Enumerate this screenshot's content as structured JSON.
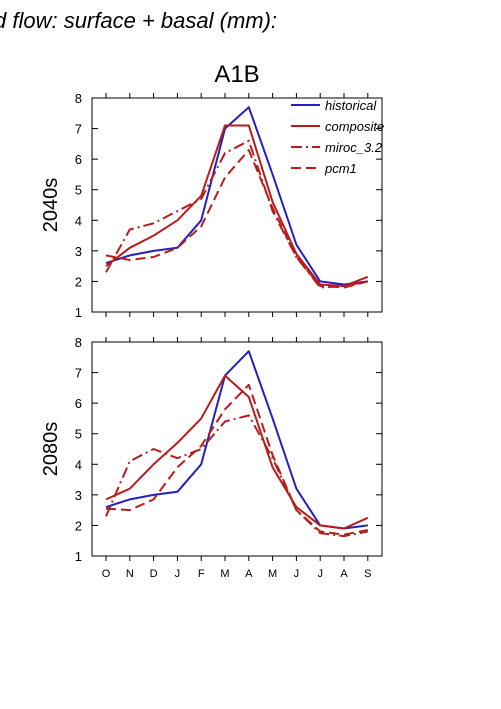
{
  "figure_title": "d flow: surface + basal (mm):",
  "scenario_label": "A1B",
  "colors": {
    "historical": "#2222bb",
    "composite": "#b81c1c",
    "miroc_3.2": "#b81c1c",
    "pcm1": "#b81c1c"
  },
  "chart_data": [
    {
      "type": "line",
      "row_label": "2040s",
      "x": [
        "O",
        "N",
        "D",
        "J",
        "F",
        "M",
        "A",
        "M",
        "J",
        "J",
        "A",
        "S"
      ],
      "ylim": [
        1,
        8
      ],
      "yticks": [
        "1",
        "2",
        "3",
        "4",
        "5",
        "6",
        "7",
        "8"
      ],
      "legend_position": "top-right",
      "series": [
        {
          "name": "historical",
          "style": "solid",
          "values": [
            2.6,
            2.85,
            3.0,
            3.1,
            4.0,
            7.0,
            7.7,
            5.5,
            3.2,
            2.0,
            1.9,
            2.0
          ]
        },
        {
          "name": "composite",
          "style": "solid",
          "values": [
            2.5,
            3.1,
            3.5,
            4.0,
            4.8,
            7.1,
            7.1,
            4.6,
            2.9,
            1.9,
            1.85,
            2.15
          ]
        },
        {
          "name": "miroc_3.2",
          "style": "dashdot",
          "values": [
            2.3,
            3.7,
            3.9,
            4.3,
            4.7,
            6.2,
            6.6,
            4.3,
            2.8,
            1.8,
            1.85,
            2.0
          ]
        },
        {
          "name": "pcm1",
          "style": "dashed",
          "values": [
            2.85,
            2.7,
            2.8,
            3.1,
            3.8,
            5.4,
            6.3,
            4.4,
            2.8,
            1.85,
            1.8,
            2.0
          ]
        }
      ]
    },
    {
      "type": "line",
      "row_label": "2080s",
      "x": [
        "O",
        "N",
        "D",
        "J",
        "F",
        "M",
        "A",
        "M",
        "J",
        "J",
        "A",
        "S"
      ],
      "ylim": [
        1,
        8
      ],
      "yticks": [
        "1",
        "2",
        "3",
        "4",
        "5",
        "6",
        "7",
        "8"
      ],
      "series": [
        {
          "name": "historical",
          "style": "solid",
          "values": [
            2.6,
            2.85,
            3.0,
            3.1,
            4.0,
            6.9,
            7.7,
            5.5,
            3.2,
            2.0,
            1.9,
            2.0
          ]
        },
        {
          "name": "composite",
          "style": "solid",
          "values": [
            2.85,
            3.2,
            4.0,
            4.7,
            5.5,
            6.9,
            6.2,
            3.9,
            2.6,
            2.0,
            1.9,
            2.25
          ]
        },
        {
          "name": "miroc_3.2",
          "style": "dashdot",
          "values": [
            2.3,
            4.1,
            4.5,
            4.2,
            4.5,
            5.4,
            5.6,
            4.2,
            2.5,
            1.75,
            1.65,
            1.8
          ]
        },
        {
          "name": "pcm1",
          "style": "dashed",
          "values": [
            2.55,
            2.5,
            2.85,
            3.9,
            4.6,
            5.8,
            6.6,
            4.3,
            2.5,
            1.8,
            1.7,
            1.85
          ]
        }
      ]
    }
  ]
}
